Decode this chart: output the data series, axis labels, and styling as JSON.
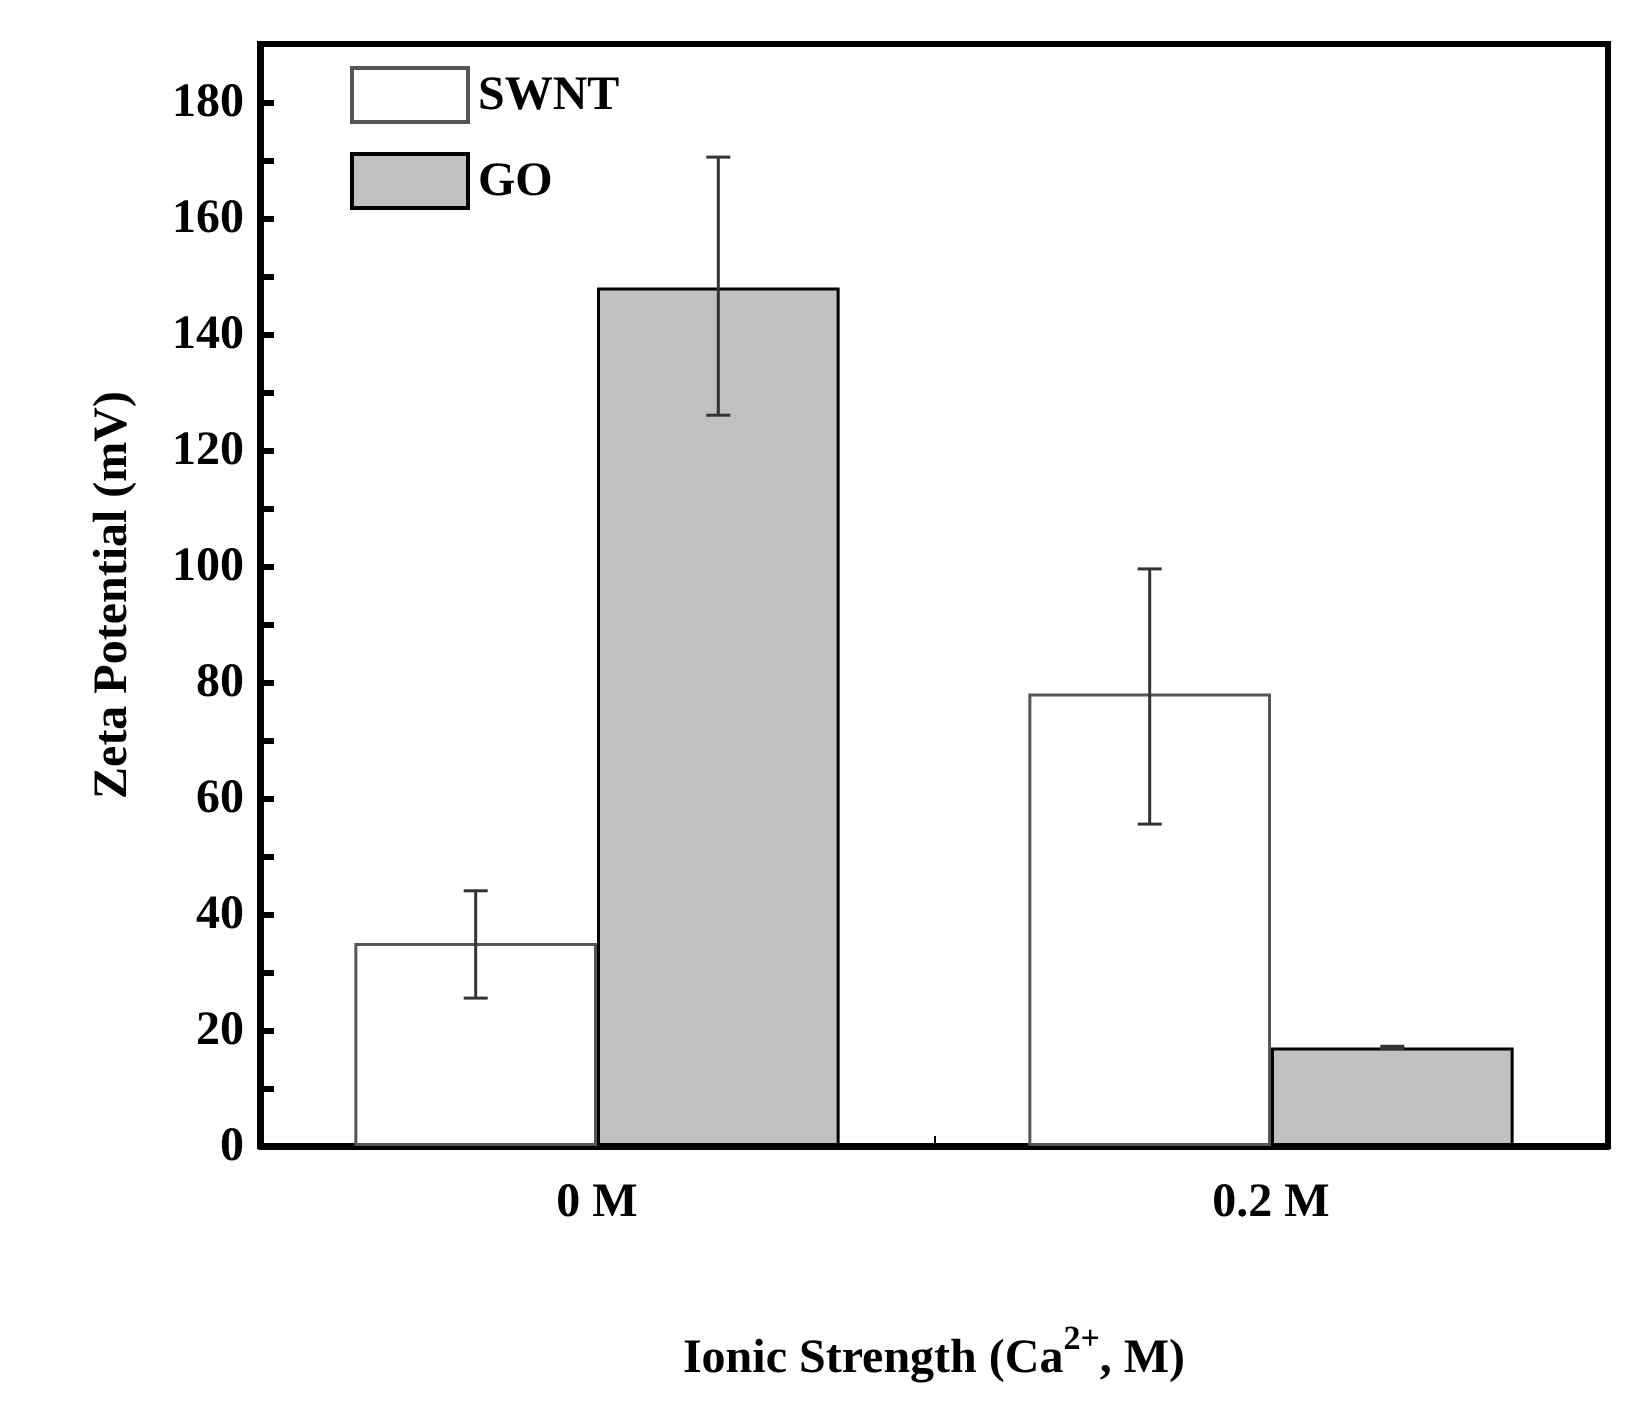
{
  "chart_data": {
    "type": "bar",
    "xlabel": "Ionic Strength (Ca$^{2+}$, M)",
    "ylabel": "Zeta Potential (mV)",
    "categories": [
      "0 M",
      "0.2 M"
    ],
    "series": [
      {
        "name": "SWNT",
        "color": "#ffffff",
        "values": [
          35,
          78
        ],
        "errors": [
          [
            25.5,
            44
          ],
          [
            55.5,
            99.5
          ]
        ]
      },
      {
        "name": "GO",
        "color": "#c0c0c0",
        "values": [
          148,
          17
        ],
        "errors": [
          [
            126,
            170.5
          ],
          [
            16.8,
            17.2
          ]
        ]
      }
    ],
    "ylim": [
      0,
      190
    ],
    "yticks": [
      0,
      {
        "value": 10,
        "label": null
      },
      20,
      {
        "value": 30,
        "label": null
      },
      40,
      {
        "value": 50,
        "label": null
      },
      60,
      {
        "value": 70,
        "label": null
      },
      80,
      {
        "value": 90,
        "label": null
      },
      100,
      {
        "value": 110,
        "label": null
      },
      120,
      {
        "value": 130,
        "label": null
      },
      140,
      {
        "value": 150,
        "label": null
      },
      160,
      {
        "value": 170,
        "label": null
      },
      180
    ],
    "grid": false,
    "legend": "top left"
  }
}
